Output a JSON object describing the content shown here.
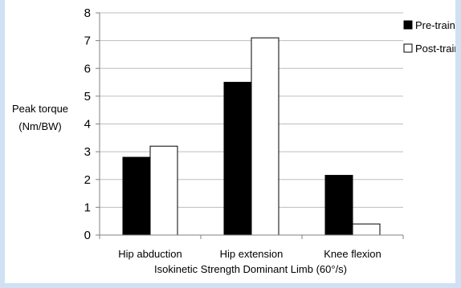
{
  "chart_data": {
    "type": "bar",
    "title": "",
    "ylabel_lines": [
      "Peak torque",
      "(Nm/BW)"
    ],
    "xlabel": "Isokinetic Strength Dominant Limb (60°/s)",
    "categories": [
      "Hip abduction",
      "Hip extension",
      "Knee flexion"
    ],
    "series": [
      {
        "name": "Pre-train",
        "color": "#000000",
        "values": [
          2.8,
          5.5,
          2.15
        ]
      },
      {
        "name": "Post-train",
        "color": "#ffffff",
        "values": [
          3.2,
          7.1,
          0.4
        ]
      }
    ],
    "ylim": [
      0,
      8
    ],
    "yticks": [
      "0",
      "1",
      "2",
      "3",
      "4",
      "5",
      "6",
      "7",
      "8"
    ],
    "grid": true,
    "legend_position": "top-right"
  }
}
